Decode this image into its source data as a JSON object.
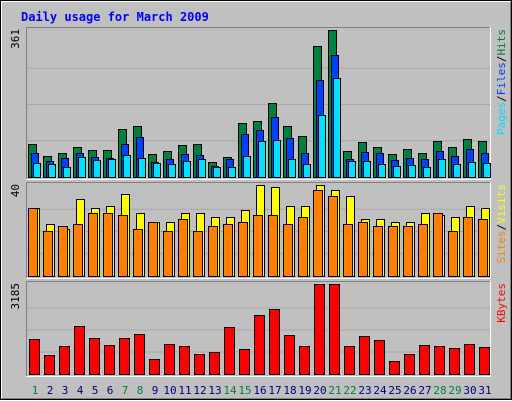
{
  "chart_data": {
    "type": "bar",
    "title": "Daily usage for March 2009",
    "categories": [
      "1",
      "2",
      "3",
      "4",
      "5",
      "6",
      "7",
      "8",
      "9",
      "10",
      "11",
      "12",
      "13",
      "14",
      "15",
      "16",
      "17",
      "18",
      "19",
      "20",
      "21",
      "22",
      "23",
      "24",
      "25",
      "26",
      "27",
      "28",
      "29",
      "30",
      "31"
    ],
    "weekend_days": [
      "1",
      "7",
      "8",
      "14",
      "15",
      "21",
      "22",
      "28",
      "29"
    ],
    "panels": [
      {
        "id": "hits-files-pages",
        "ymax_label": "361",
        "ylim": [
          0,
          361
        ],
        "legend": [
          {
            "text": "Pages",
            "color": "#00e0ff"
          },
          {
            "text": "/",
            "color": "#000000"
          },
          {
            "text": "Files",
            "color": "#0040ff"
          },
          {
            "text": "/",
            "color": "#000000"
          },
          {
            "text": "Hits",
            "color": "#008040"
          }
        ],
        "series": [
          {
            "name": "Hits",
            "color": "#008040",
            "values": [
              84,
              53,
              60,
              75,
              68,
              69,
              119,
              126,
              58,
              66,
              80,
              84,
              38,
              52,
              134,
              138,
              182,
              126,
              103,
              322,
              361,
              66,
              87,
              75,
              58,
              70,
              61,
              90,
              76,
              96,
              91
            ]
          },
          {
            "name": "Files",
            "color": "#0040ff",
            "values": [
              60,
              42,
              50,
              60,
              52,
              49,
              82,
              101,
              40,
              47,
              58,
              56,
              30,
              46,
              107,
              118,
              150,
              97,
              62,
              240,
              300,
              47,
              64,
              60,
              44,
              49,
              46,
              66,
              54,
              70,
              61
            ]
          },
          {
            "name": "Pages",
            "color": "#00e0ff",
            "values": [
              37,
              33,
              27,
              52,
              44,
              47,
              55,
              48,
              36,
              33,
              42,
              47,
              26,
              27,
              53,
              91,
              92,
              47,
              33,
              153,
              244,
              42,
              42,
              33,
              30,
              31,
              28,
              46,
              35,
              40,
              37
            ]
          }
        ]
      },
      {
        "id": "visits-sites",
        "ymax_label": "40",
        "ylim": [
          0,
          40
        ],
        "legend": [
          {
            "text": "Sites",
            "color": "#ff8000"
          },
          {
            "text": "/",
            "color": "#000000"
          },
          {
            "text": "Visits",
            "color": "#ffff00"
          }
        ],
        "series": [
          {
            "name": "Visits",
            "color": "#ffff00",
            "values": [
              30,
              23,
              21,
              34,
              30,
              31,
              36,
              28,
              24,
              24,
              28,
              28,
              26,
              26,
              29,
              40,
              39,
              31,
              31,
              40,
              38,
              35,
              25,
              25,
              24,
              24,
              28,
              27,
              26,
              31,
              30
            ]
          },
          {
            "name": "Sites",
            "color": "#ff8000",
            "values": [
              30,
              20,
              22,
              23,
              28,
              28,
              27,
              21,
              24,
              20,
              25,
              20,
              22,
              23,
              24,
              27,
              27,
              23,
              26,
              38,
              35,
              23,
              24,
              22,
              22,
              22,
              23,
              28,
              20,
              26,
              25
            ]
          }
        ]
      },
      {
        "id": "kbytes",
        "ymax_label": "3185",
        "ylim": [
          0,
          3185
        ],
        "legend": [
          {
            "text": "KBytes",
            "color": "#ff0000"
          }
        ],
        "series": [
          {
            "name": "KBytes",
            "color": "#ff0000",
            "values": [
              1250,
              700,
              1030,
              1700,
              1280,
              1050,
              1290,
              1430,
              560,
              1080,
              1010,
              720,
              810,
              1690,
              900,
              2090,
              2300,
              1390,
              1000,
              3185,
              3185,
              1000,
              1370,
              1240,
              490,
              730,
              1050,
              1000,
              940,
              1080,
              990
            ]
          }
        ]
      }
    ]
  }
}
